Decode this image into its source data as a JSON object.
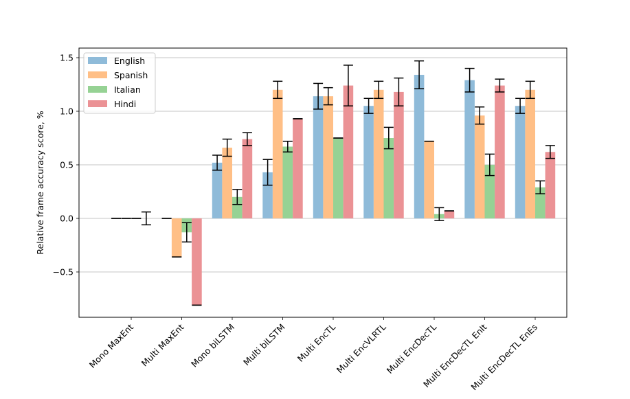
{
  "chart_data": {
    "type": "bar",
    "title": "",
    "xlabel": "",
    "ylabel": "Relative frame accuracy score, %",
    "ylim": [
      -0.92,
      1.6
    ],
    "yticks": [
      -0.5,
      0.0,
      0.5,
      1.0,
      1.5
    ],
    "ytick_labels": [
      "−0.5",
      "0.0",
      "0.5",
      "1.0",
      "1.5"
    ],
    "grid": "y",
    "legend_position": "upper-left",
    "categories": [
      "Mono MaxEnt",
      "Multi MaxEnt",
      "Mono biLSTM",
      "Multi biLSTM",
      "Multi EncTL",
      "Multi EncVLRTL",
      "Multi EncDecTL",
      "Multi EncDecTL EnIt",
      "Multi EncDecTL EnEs"
    ],
    "series": [
      {
        "name": "English",
        "color": "#8fbbd9",
        "values": [
          0.0,
          0.0,
          0.52,
          0.43,
          1.14,
          1.05,
          1.34,
          1.29,
          1.05
        ],
        "errors": [
          0.0,
          0.0,
          0.07,
          0.12,
          0.12,
          0.07,
          0.13,
          0.11,
          0.07
        ]
      },
      {
        "name": "Spanish",
        "color": "#ffbf86",
        "values": [
          0.0,
          -0.36,
          0.66,
          1.2,
          1.14,
          1.2,
          0.72,
          0.96,
          1.2
        ],
        "errors": [
          0.0,
          0.0,
          0.08,
          0.08,
          0.08,
          0.08,
          0.0,
          0.08,
          0.08
        ]
      },
      {
        "name": "Italian",
        "color": "#96d294",
        "values": [
          0.0,
          -0.13,
          0.2,
          0.67,
          0.75,
          0.75,
          0.04,
          0.5,
          0.29
        ],
        "errors": [
          0.0,
          0.09,
          0.07,
          0.05,
          0.0,
          0.1,
          0.06,
          0.1,
          0.06
        ]
      },
      {
        "name": "Hindi",
        "color": "#eb9295",
        "values": [
          0.0,
          -0.81,
          0.74,
          0.93,
          1.24,
          1.18,
          0.07,
          1.24,
          0.62
        ],
        "errors": [
          0.06,
          0.0,
          0.06,
          0.0,
          0.19,
          0.13,
          0.0,
          0.06,
          0.06
        ]
      }
    ]
  }
}
